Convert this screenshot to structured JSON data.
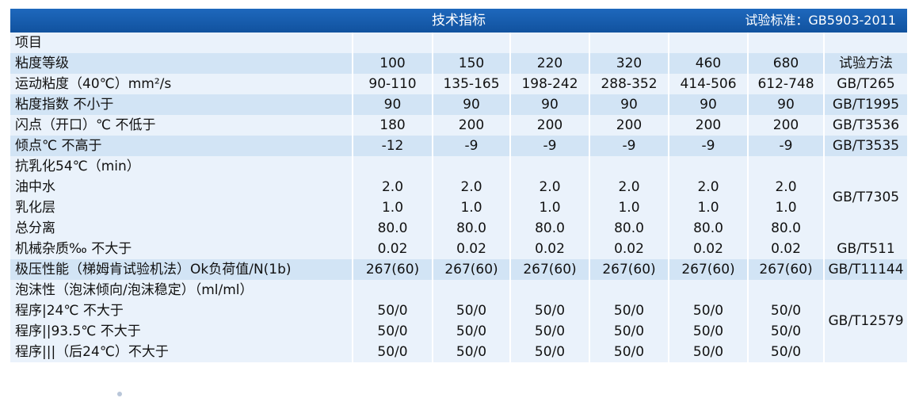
{
  "header": {
    "title": "技术指标",
    "standard": "试验标准：GB5903-2011"
  },
  "table": {
    "item_label": "项目",
    "grade_label": "粘度等级",
    "grades": [
      "100",
      "150",
      "220",
      "320",
      "460",
      "680"
    ],
    "method_label": "试验方法",
    "rows": [
      {
        "label": "运动粘度（40℃）mm²/s",
        "values": [
          "90-110",
          "135-165",
          "198-242",
          "288-352",
          "414-506",
          "612-748"
        ],
        "method": "GB/T265"
      },
      {
        "label": "粘度指数 不小于",
        "values": [
          "90",
          "90",
          "90",
          "90",
          "90",
          "90"
        ],
        "method": "GB/T1995"
      },
      {
        "label": "闪点（开口）℃ 不低于",
        "values": [
          "180",
          "200",
          "200",
          "200",
          "200",
          "200"
        ],
        "method": "GB/T3536"
      },
      {
        "label": "倾点℃  不高于",
        "values": [
          "-12",
          "-9",
          "-9",
          "-9",
          "-9",
          "-9"
        ],
        "method": "GB/T3535"
      }
    ],
    "demulsibility": {
      "label": "抗乳化54℃（min）",
      "method": "GB/T7305",
      "subrows": [
        {
          "label": "油中水",
          "values": [
            "2.0",
            "2.0",
            "2.0",
            "2.0",
            "2.0",
            "2.0"
          ]
        },
        {
          "label": "乳化层",
          "values": [
            "1.0",
            "1.0",
            "1.0",
            "1.0",
            "1.0",
            "1.0"
          ]
        },
        {
          "label": "总分离",
          "values": [
            "80.0",
            "80.0",
            "80.0",
            "80.0",
            "80.0",
            "80.0"
          ]
        }
      ]
    },
    "impurities": {
      "label": "机械杂质‰   不大于",
      "values": [
        "0.02",
        "0.02",
        "0.02",
        "0.02",
        "0.02",
        "0.02"
      ],
      "method": "GB/T511"
    },
    "extreme_pressure": {
      "label": "极压性能（梯姆肯试验机法）Ok负荷值/N(1b)",
      "values": [
        "267(60)",
        "267(60)",
        "267(60)",
        "267(60)",
        "267(60)",
        "267(60)"
      ],
      "method": "GB/T11144"
    },
    "foam": {
      "label": "泡沫性（泡沫倾向/泡沫稳定）（ml/ml）",
      "method": "GB/T12579",
      "subrows": [
        {
          "label": "程序|24℃  不大于",
          "values": [
            "50/0",
            "50/0",
            "50/0",
            "50/0",
            "50/0",
            "50/0"
          ]
        },
        {
          "label": "程序||93.5℃  不大于",
          "values": [
            "50/0",
            "50/0",
            "50/0",
            "50/0",
            "50/0",
            "50/0"
          ]
        },
        {
          "label": "程序|||（后24℃）不大于",
          "values": [
            "50/0",
            "50/0",
            "50/0",
            "50/0",
            "50/0",
            "50/0"
          ]
        }
      ]
    }
  }
}
